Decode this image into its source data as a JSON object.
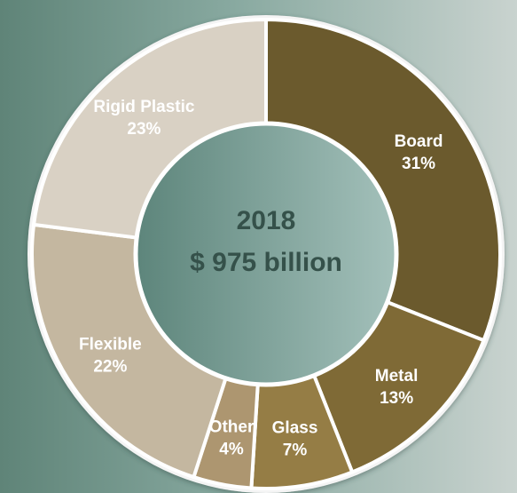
{
  "chart_data": {
    "type": "pie",
    "variant": "donut",
    "center": {
      "year": "2018",
      "total": "$ 975 billion"
    },
    "slices": [
      {
        "name": "Board",
        "value": 31,
        "label": "31%",
        "color": "#6b5a2d"
      },
      {
        "name": "Metal",
        "value": 13,
        "label": "13%",
        "color": "#7f6a36"
      },
      {
        "name": "Glass",
        "value": 7,
        "label": "7%",
        "color": "#957d45"
      },
      {
        "name": "Other",
        "value": 4,
        "label": "4%",
        "color": "#ad9670"
      },
      {
        "name": "Flexible",
        "value": 22,
        "label": "22%",
        "color": "#c4b7a0"
      },
      {
        "name": "Rigid Plastic",
        "value": 23,
        "label": "23%",
        "color": "#d9d1c4"
      }
    ],
    "colors": {
      "background_left": "#5f8478",
      "background_right": "#c9d3cf",
      "ring_outline": "#f4f4f4",
      "center_fill_left": "#5d857b",
      "center_fill_right": "#a4c1bb",
      "center_text": "#35514a",
      "label_text": "#ffffff"
    }
  }
}
